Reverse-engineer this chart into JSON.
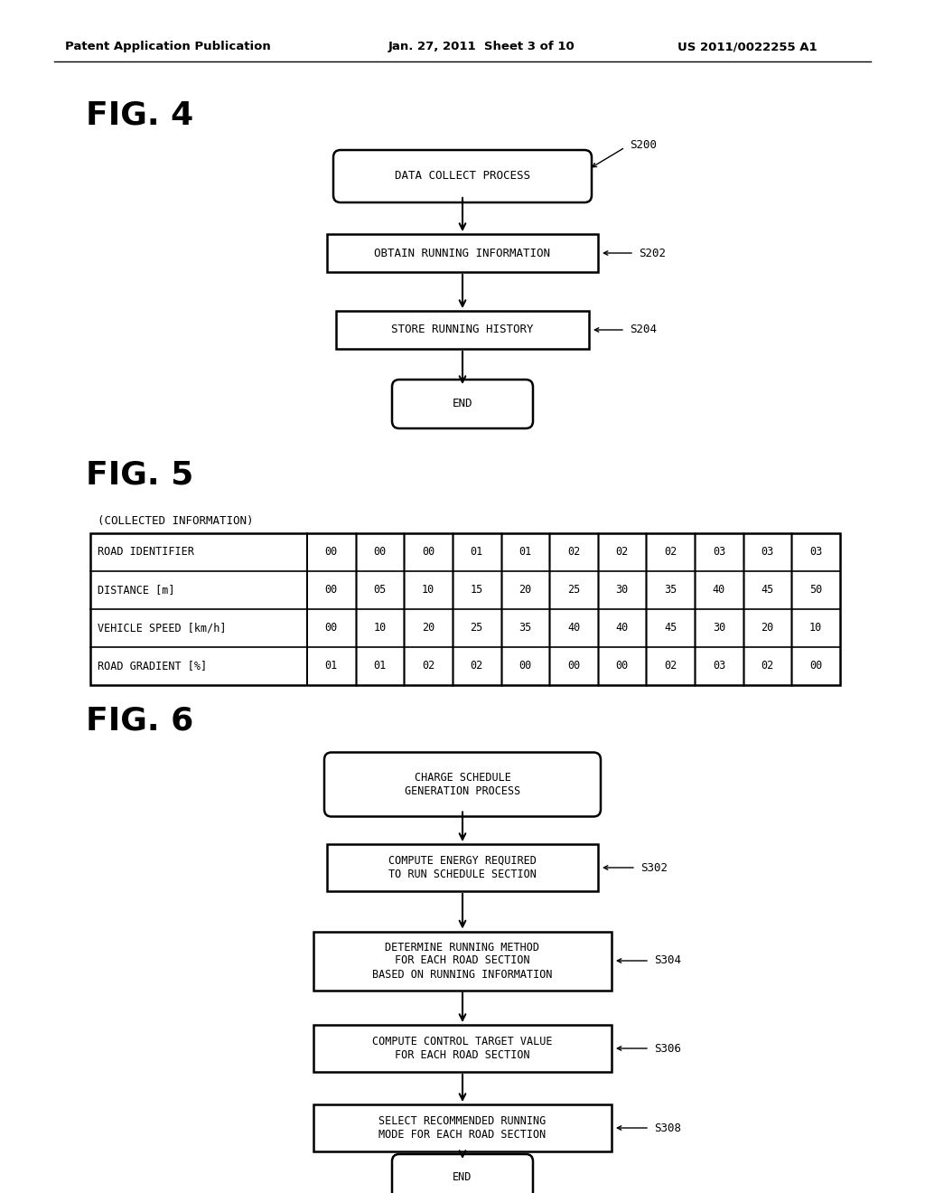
{
  "header_left": "Patent Application Publication",
  "header_mid": "Jan. 27, 2011  Sheet 3 of 10",
  "header_right": "US 2011/0022255 A1",
  "fig4_label": "FIG. 4",
  "fig5_label": "FIG. 5",
  "fig6_label": "FIG. 6",
  "table_header": "(COLLECTED INFORMATION)",
  "table_rows": [
    [
      "ROAD IDENTIFIER",
      "00",
      "00",
      "00",
      "01",
      "01",
      "02",
      "02",
      "02",
      "03",
      "03",
      "03"
    ],
    [
      "DISTANCE [m]",
      "00",
      "05",
      "10",
      "15",
      "20",
      "25",
      "30",
      "35",
      "40",
      "45",
      "50"
    ],
    [
      "VEHICLE SPEED [km/h]",
      "00",
      "10",
      "20",
      "25",
      "35",
      "40",
      "40",
      "45",
      "30",
      "20",
      "10"
    ],
    [
      "ROAD GRADIENT [%]",
      "01",
      "01",
      "02",
      "02",
      "00",
      "00",
      "00",
      "02",
      "03",
      "02",
      "00"
    ]
  ],
  "bg_color": "#ffffff"
}
